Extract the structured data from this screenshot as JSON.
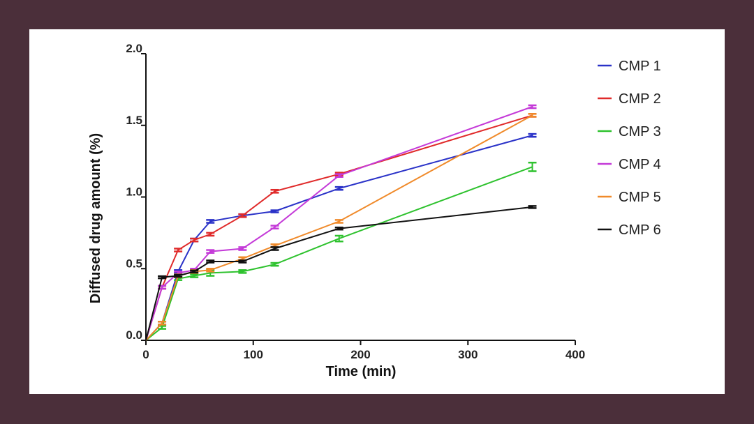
{
  "chart_data": {
    "type": "line",
    "title": "",
    "xlabel": "Time (min)",
    "ylabel": "Diffused drug amount (%)",
    "xlim": [
      0,
      400
    ],
    "ylim": [
      0,
      2.0
    ],
    "xticks": [
      0,
      100,
      200,
      300,
      400
    ],
    "xtick_labels": [
      "0",
      "100",
      "200",
      "300",
      "400"
    ],
    "yticks": [
      0,
      0.5,
      1.0,
      1.5,
      2.0
    ],
    "ytick_labels": [
      "0.0",
      "0.5",
      "1.0",
      "1.5",
      "2.0"
    ],
    "grid": false,
    "legend_position": "right",
    "series": [
      {
        "name": "CMP 1",
        "color": "#2a32c8",
        "x": [
          0,
          15,
          30,
          45,
          60,
          90,
          120,
          180,
          360
        ],
        "y": [
          0,
          0.12,
          0.48,
          0.7,
          0.83,
          0.87,
          0.9,
          1.06,
          1.43
        ],
        "err": [
          0,
          0.01,
          0.01,
          0.01,
          0.01,
          0.01,
          0,
          0.01,
          0.01
        ]
      },
      {
        "name": "CMP 2",
        "color": "#e02a2a",
        "x": [
          0,
          15,
          30,
          45,
          60,
          90,
          120,
          180,
          360
        ],
        "y": [
          0,
          0.37,
          0.63,
          0.7,
          0.74,
          0.87,
          1.04,
          1.16,
          1.57
        ],
        "err": [
          0,
          0.01,
          0.01,
          0.01,
          0.01,
          0.01,
          0.01,
          0.01,
          0.01
        ]
      },
      {
        "name": "CMP 3",
        "color": "#2ec22e",
        "x": [
          0,
          15,
          30,
          45,
          60,
          90,
          120,
          180,
          360
        ],
        "y": [
          0,
          0.09,
          0.43,
          0.45,
          0.47,
          0.48,
          0.53,
          0.71,
          1.21
        ],
        "err": [
          0,
          0.01,
          0.01,
          0.01,
          0.02,
          0.01,
          0.01,
          0.02,
          0.03
        ]
      },
      {
        "name": "CMP 4",
        "color": "#c43ad8",
        "x": [
          0,
          15,
          30,
          45,
          60,
          90,
          120,
          180,
          360
        ],
        "y": [
          0,
          0.37,
          0.47,
          0.49,
          0.62,
          0.64,
          0.79,
          1.15,
          1.63
        ],
        "err": [
          0,
          0.01,
          0.01,
          0.01,
          0.01,
          0.01,
          0.01,
          0.01,
          0.01
        ]
      },
      {
        "name": "CMP 5",
        "color": "#f08a2a",
        "x": [
          0,
          15,
          30,
          45,
          60,
          90,
          120,
          180,
          360
        ],
        "y": [
          0,
          0.12,
          0.45,
          0.48,
          0.49,
          0.57,
          0.66,
          0.83,
          1.57
        ],
        "err": [
          0,
          0.01,
          0.01,
          0.01,
          0.01,
          0.01,
          0.01,
          0.01,
          0.01
        ]
      },
      {
        "name": "CMP 6",
        "color": "#111111",
        "x": [
          0,
          15,
          30,
          45,
          60,
          90,
          120,
          180,
          360
        ],
        "y": [
          0,
          0.44,
          0.45,
          0.48,
          0.55,
          0.55,
          0.64,
          0.78,
          0.93
        ],
        "err": [
          0,
          0,
          0,
          0,
          0,
          0,
          0.01,
          0,
          0
        ]
      }
    ]
  }
}
